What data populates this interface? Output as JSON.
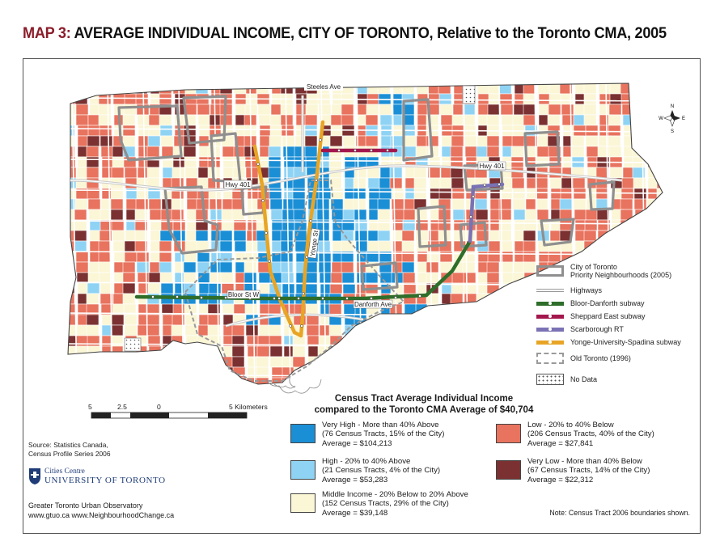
{
  "title": {
    "prefix": "MAP 3:",
    "main": " AVERAGE INDIVIDUAL INCOME, CITY OF TORONTO, Relative to the Toronto CMA, 2005"
  },
  "map_labels": {
    "steeles": "Steeles Ave",
    "hwy401_west": "Hwy 401",
    "hwy401_east": "Hwy 401",
    "bloor": "Bloor St W",
    "danforth": "Danforth Ave",
    "yonge": "Yonge St"
  },
  "north_arrow": {
    "n": "N",
    "e": "E",
    "s": "S",
    "w": "W"
  },
  "layer_legend": [
    {
      "label": "City of Toronto",
      "label2": "Priority Neighbourhoods (2005)",
      "icon": "priority-box",
      "color": "#8f8f8f"
    },
    {
      "label": "Highways",
      "icon": "double-line",
      "color": "#c8c8c8"
    },
    {
      "label": "Bloor-Danforth subway",
      "icon": "subway-line",
      "color": "#2e6e2a"
    },
    {
      "label": "Sheppard East subway",
      "icon": "subway-line",
      "color": "#a4174d"
    },
    {
      "label": "Scarborough RT",
      "icon": "subway-line",
      "color": "#7a72b4"
    },
    {
      "label": "Yonge-University-Spadina subway",
      "icon": "subway-line",
      "color": "#e8a525"
    },
    {
      "label": "Old Toronto (1996)",
      "icon": "dashed-box",
      "color": "#9a9a9a"
    },
    {
      "label": "No Data",
      "icon": "dotted-box",
      "color": "#ffffff"
    }
  ],
  "scale": {
    "labels": [
      "5",
      "2.5",
      "0",
      "5 Kilometers"
    ]
  },
  "income_legend": {
    "title_line1": "Census Tract Average Individual Income",
    "title_line2": "compared to the Toronto CMA Average of $40,704",
    "items": [
      {
        "name": "very-high",
        "color": "#1b8fd6",
        "l1": "Very High - More than 40% Above",
        "l2": "(76 Census Tracts, 15% of the City)",
        "l3": "Average = $104,213"
      },
      {
        "name": "high",
        "color": "#8fd3f4",
        "l1": "High - 20% to 40% Above",
        "l2": "(21 Census Tracts, 4% of the City)",
        "l3": "Average = $53,283"
      },
      {
        "name": "middle",
        "color": "#fbf6d6",
        "l1": "Middle Income - 20% Below to 20% Above",
        "l2": "(152 Census Tracts, 29% of the City)",
        "l3": "Average = $39,148"
      },
      {
        "name": "low",
        "color": "#e8735e",
        "l1": "Low - 20% to 40% Below",
        "l2": "(206 Census Tracts, 40% of the City)",
        "l3": "Average = $27,841"
      },
      {
        "name": "very-low",
        "color": "#7b3131",
        "l1": "Very Low - More than 40% Below",
        "l2": "(67 Census Tracts, 14% of the City)",
        "l3": "Average = $22,312"
      }
    ]
  },
  "source": {
    "line1": "Source: Statistics Canada,",
    "line2": "Census Profile Series 2006"
  },
  "logo": {
    "line1": "Cities Centre",
    "line2": "UNIVERSITY OF TORONTO"
  },
  "footer": {
    "line1": "Greater Toronto Urban Observatory",
    "line2": "www.gtuo.ca    www.NeighbourhoodChange.ca"
  },
  "note": "Note: Census Tract 2006 boundaries shown."
}
